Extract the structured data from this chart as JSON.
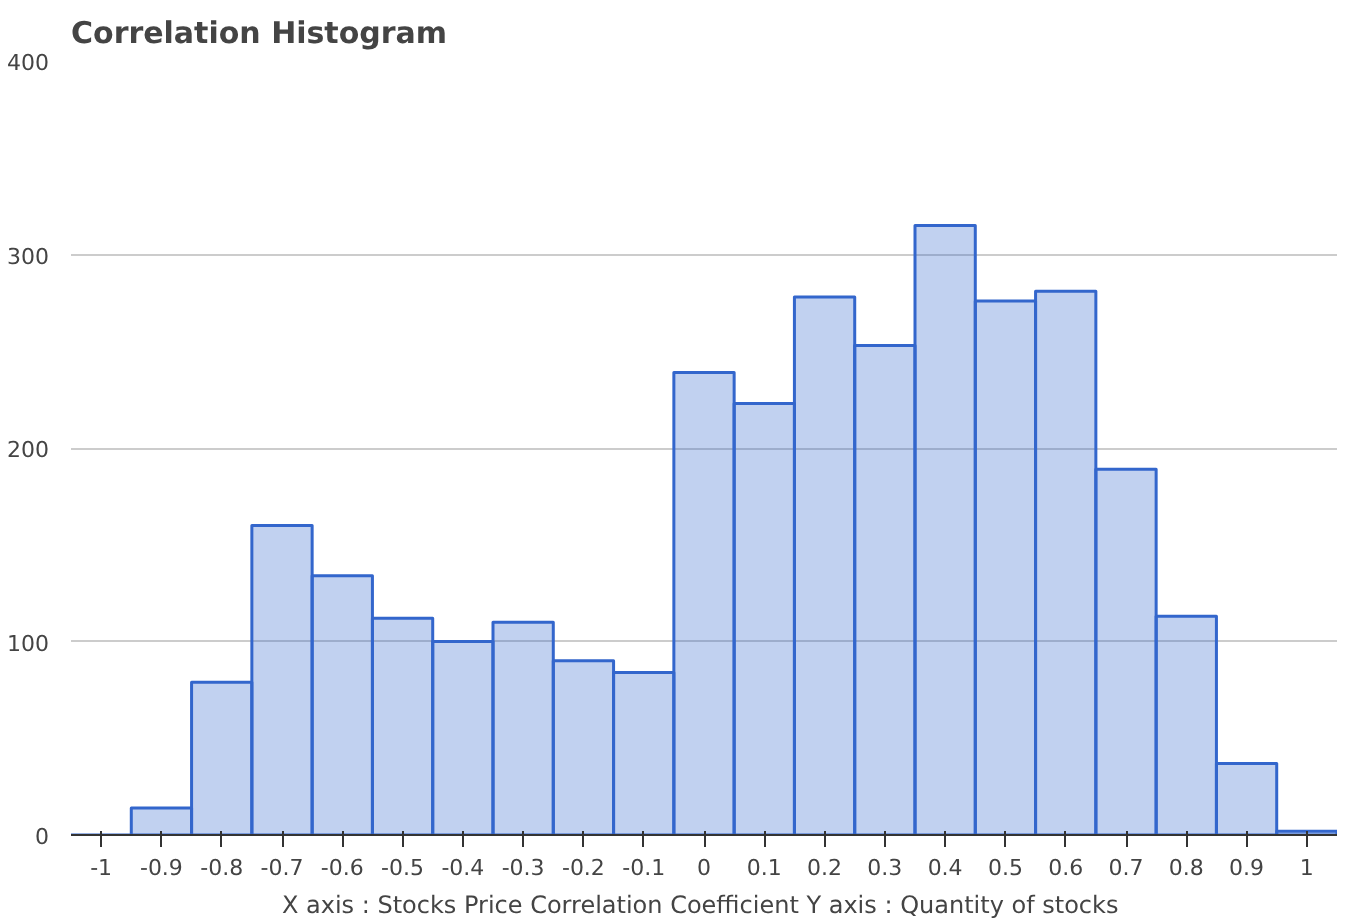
{
  "chart_data": {
    "type": "histogram",
    "title": "Correlation Histogram",
    "xlabel": "X axis : Stocks Price Correlation Coefficient  Y axis : Quantity of stocks",
    "bins": [
      -1.05,
      -0.95,
      -0.85,
      -0.75,
      -0.65,
      -0.55,
      -0.45,
      -0.35,
      -0.25,
      -0.15,
      -0.05,
      0.05,
      0.15,
      0.25,
      0.35,
      0.45,
      0.55,
      0.65,
      0.75,
      0.85,
      0.95,
      1.05
    ],
    "values": [
      0,
      14,
      79,
      160,
      134,
      112,
      100,
      110,
      90,
      84,
      239,
      223,
      278,
      253,
      315,
      276,
      281,
      189,
      113,
      37,
      2
    ],
    "color": "#3366cc",
    "xlim": [
      -1.05,
      1.05
    ],
    "ylim": [
      0,
      400
    ],
    "xticks": [
      -1,
      -0.9,
      -0.8,
      -0.7,
      -0.6,
      -0.5,
      -0.4,
      -0.3,
      -0.2,
      -0.1,
      0,
      0.1,
      0.2,
      0.3,
      0.4,
      0.5,
      0.6,
      0.7,
      0.8,
      0.9,
      1
    ],
    "yticks": [
      0,
      100,
      200,
      300,
      400
    ],
    "grid": "y"
  }
}
